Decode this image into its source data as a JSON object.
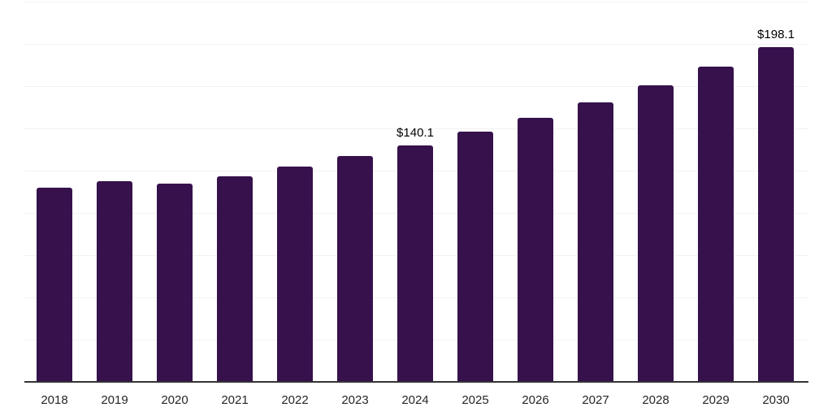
{
  "chart_data": {
    "type": "bar",
    "title": "",
    "xlabel": "",
    "ylabel": "",
    "categories": [
      "2018",
      "2019",
      "2020",
      "2021",
      "2022",
      "2023",
      "2024",
      "2025",
      "2026",
      "2027",
      "2028",
      "2029",
      "2030"
    ],
    "values": [
      114.9,
      118.7,
      117.3,
      121.6,
      127.3,
      133.6,
      140.1,
      148.0,
      156.2,
      165.3,
      175.4,
      186.5,
      198.1
    ],
    "bar_labels": {
      "2024": "$140.1",
      "2030": "$198.1"
    },
    "ylim": [
      0,
      225
    ],
    "grid_step": 25,
    "grid": true,
    "legend": false,
    "colors": {
      "bar": "#36114c",
      "gridline": "#f2f2f2",
      "axis_line": "#333333",
      "tick_label": "#262626",
      "data_label": "#000000",
      "background": "#ffffff"
    }
  }
}
